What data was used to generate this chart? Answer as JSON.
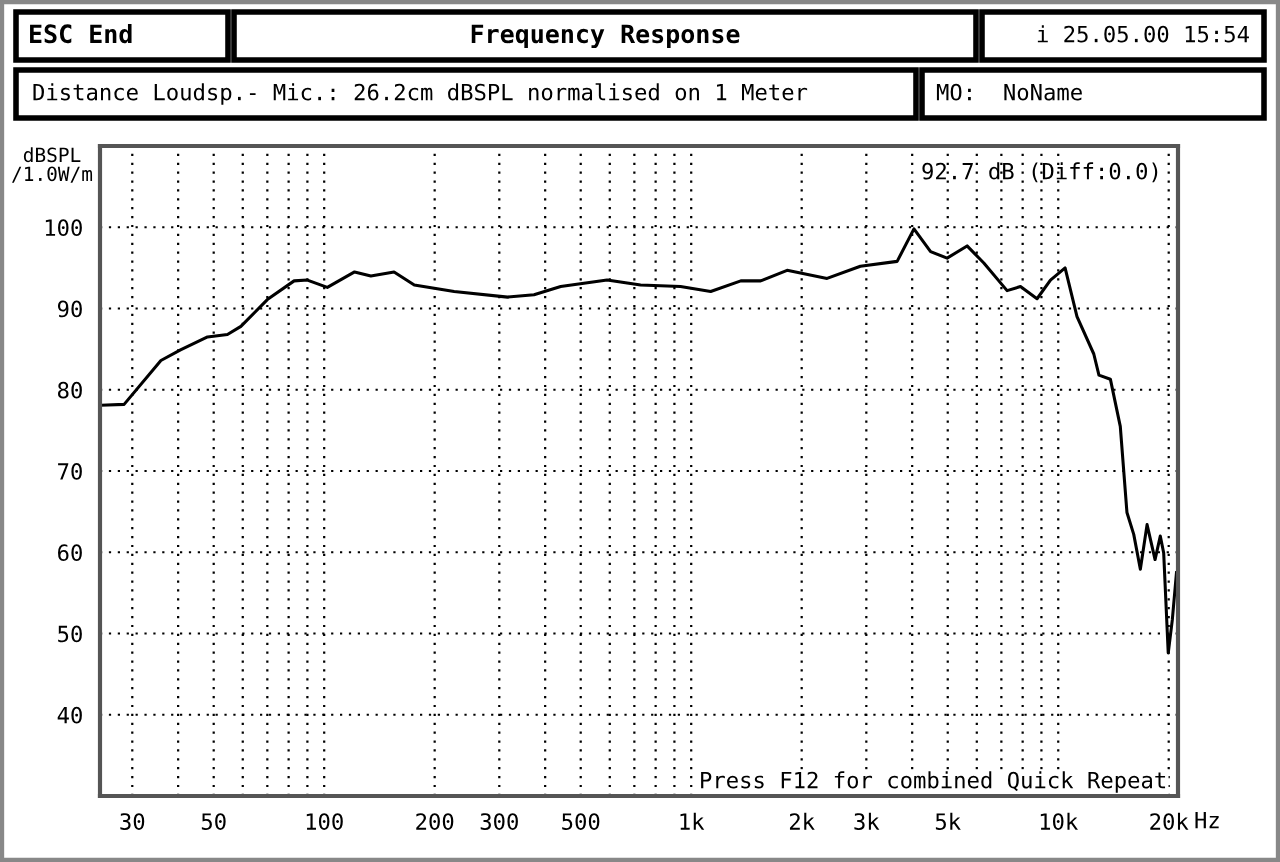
{
  "chart_data": {
    "type": "line",
    "title": "Frequency Response",
    "ylabel": "dBSPL\n/1.0W/m",
    "xlabel": "Hz",
    "annotations": [
      "ESC End",
      "i 25.05.00 15:54",
      "Distance Loudsp.- Mic.: 26.2cm dBSPL normalised on 1 Meter",
      "MO:  NoName",
      "92.7 dB (Diff:0.0)",
      "Press F12 for combined Quick Repeat"
    ],
    "log": "x",
    "grid": true,
    "marker": "none",
    "line_style": "solid",
    "xlim": [
      24.5,
      21200
    ],
    "ylim": [
      30,
      110
    ],
    "xticks": [
      {
        "value": 30,
        "label": "30"
      },
      {
        "value": 40,
        "label": null
      },
      {
        "value": 50,
        "label": "50"
      },
      {
        "value": 60,
        "label": null
      },
      {
        "value": 70,
        "label": null
      },
      {
        "value": 80,
        "label": null
      },
      {
        "value": 90,
        "label": null
      },
      {
        "value": 100,
        "label": "100"
      },
      {
        "value": 200,
        "label": "200"
      },
      {
        "value": 300,
        "label": "300"
      },
      {
        "value": 400,
        "label": null
      },
      {
        "value": 500,
        "label": "500"
      },
      {
        "value": 600,
        "label": null
      },
      {
        "value": 700,
        "label": null
      },
      {
        "value": 800,
        "label": null
      },
      {
        "value": 900,
        "label": null
      },
      {
        "value": 1000,
        "label": "1k"
      },
      {
        "value": 2000,
        "label": "2k"
      },
      {
        "value": 3000,
        "label": "3k"
      },
      {
        "value": 4000,
        "label": null
      },
      {
        "value": 5000,
        "label": "5k"
      },
      {
        "value": 6000,
        "label": null
      },
      {
        "value": 7000,
        "label": null
      },
      {
        "value": 8000,
        "label": null
      },
      {
        "value": 9000,
        "label": null
      },
      {
        "value": 10000,
        "label": "10k"
      },
      {
        "value": 20000,
        "label": "20k"
      }
    ],
    "yticks": [
      40,
      50,
      60,
      70,
      80,
      90,
      100
    ],
    "x": [
      24.7,
      28.5,
      35.9,
      40.6,
      48.1,
      54.5,
      59.3,
      70,
      82.8,
      90,
      102,
      121,
      134,
      155,
      176,
      226,
      316,
      373,
      441,
      590,
      728,
      935,
      1130,
      1365,
      1546,
      1825,
      2345,
      2890,
      3640,
      4045,
      4490,
      4980,
      5645,
      6270,
      7255,
      7890,
      8755,
      9525,
      10440,
      11250,
      12500,
      12910,
      13870,
      14760,
      15390,
      16060,
      16740,
      17460,
      18360,
      18970,
      19380,
      19940,
      20460,
      21000
    ],
    "series": [
      {
        "color": "#000000",
        "values": [
          78.1,
          78.2,
          83.6,
          84.9,
          86.5,
          86.8,
          87.8,
          91.1,
          93.4,
          93.5,
          92.6,
          94.5,
          94.0,
          94.5,
          92.9,
          92.1,
          91.4,
          91.7,
          92.7,
          93.5,
          92.9,
          92.7,
          92.1,
          93.4,
          93.4,
          94.7,
          93.7,
          95.2,
          95.8,
          99.8,
          97.0,
          96.2,
          97.7,
          95.6,
          92.2,
          92.7,
          91.2,
          93.5,
          95.0,
          89.0,
          84.4,
          81.8,
          81.3,
          75.5,
          64.9,
          62.2,
          57.9,
          63.4,
          59.1,
          62.0,
          59.9,
          47.6,
          51.7,
          57.5
        ]
      }
    ]
  }
}
